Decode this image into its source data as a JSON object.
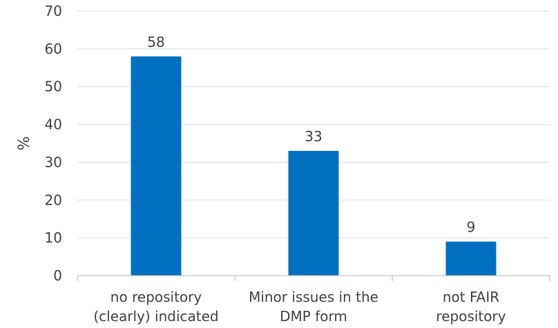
{
  "chart_data": {
    "type": "bar",
    "categories": [
      [
        "no repository",
        "(clearly) indicated"
      ],
      [
        "Minor issues in the",
        "DMP form"
      ],
      [
        "not FAIR",
        "repository"
      ]
    ],
    "values": [
      58,
      33,
      9
    ],
    "data_labels": [
      "58",
      "33",
      "9"
    ],
    "ylabel": "%",
    "xlabel": "",
    "ylim": [
      0,
      70
    ],
    "yticks": [
      0,
      10,
      20,
      30,
      40,
      50,
      60,
      70
    ],
    "grid": true,
    "legend": "none",
    "bar_color": "#0070c0"
  }
}
